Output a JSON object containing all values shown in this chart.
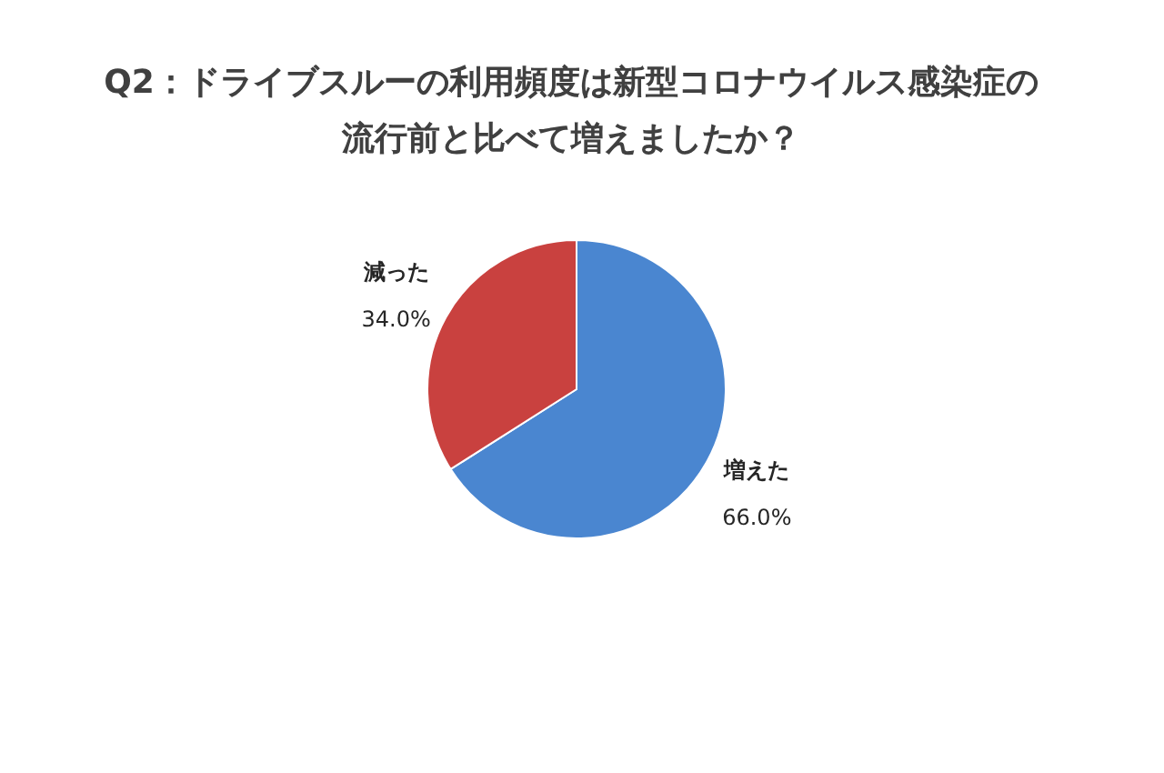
{
  "chart_data": {
    "type": "pie",
    "title": "Q2：ドライブスルーの利用頻度は新型コロナウイルス感染症の流行前と比べて増えましたか？",
    "categories": [
      "増えた",
      "減った"
    ],
    "values": [
      66.0,
      34.0
    ],
    "colors": [
      "#4a86d0",
      "#c9413f"
    ],
    "value_labels": [
      "66.0%",
      "34.0%"
    ],
    "legend": false
  }
}
